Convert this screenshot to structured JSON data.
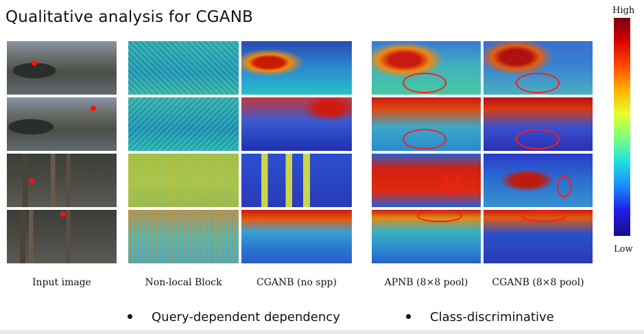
{
  "slide": {
    "title": "Qualitative analysis for CGANB"
  },
  "captions": {
    "input": "Input image",
    "nonlocal": "Non-local Block",
    "cganb_nospp": "CGANB (no spp)",
    "apnb": "APNB (8×8 pool)",
    "cganb_pool": "CGANB (8×8 pool)"
  },
  "colorbar": {
    "high_label": "High",
    "low_label": "Low"
  },
  "bullets": [
    "Query-dependent dependency",
    "Class-discriminative"
  ],
  "colors": {
    "highlight_red": "#ff1a1a",
    "background": "#ffffff"
  }
}
